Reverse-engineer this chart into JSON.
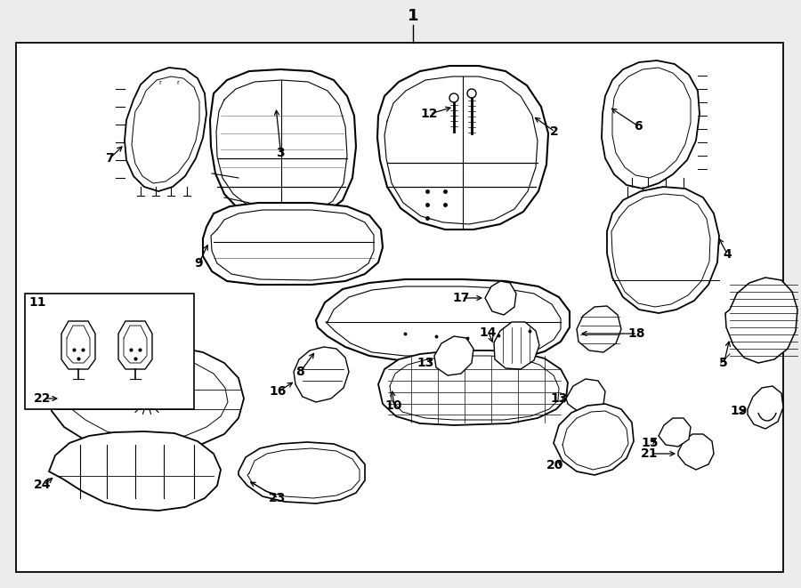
{
  "bg_color": "#ececec",
  "box_color": "#ffffff",
  "line_color": "#000000",
  "title": "1",
  "figsize": [
    9.0,
    6.61
  ],
  "dpi": 100
}
